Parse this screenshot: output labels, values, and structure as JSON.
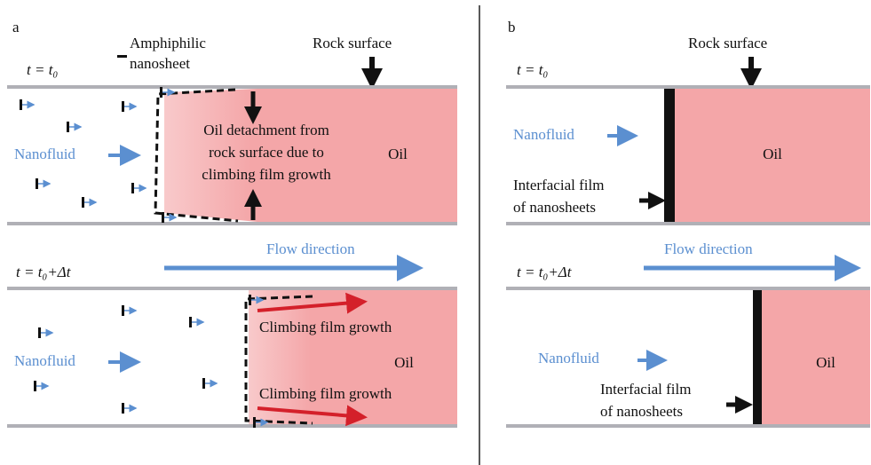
{
  "panel_a": {
    "label": "a",
    "legend_lines": [
      "Amphiphilic",
      "nanosheet"
    ],
    "rock_surface": "Rock surface",
    "top": {
      "time": "t = t₀",
      "nanofluid": "Nanofluid",
      "annotation_lines": [
        "Oil detachment from",
        "rock surface due to",
        "climbing film growth"
      ],
      "oil": "Oil"
    },
    "flow_direction": "Flow direction",
    "bottom": {
      "time": "t = t₀+Δt",
      "nanofluid": "Nanofluid",
      "growth_labels": [
        "Climbing film growth",
        "Climbing film growth"
      ],
      "oil": "Oil"
    }
  },
  "panel_b": {
    "label": "b",
    "rock_surface": "Rock surface",
    "top": {
      "time": "t = t₀",
      "nanofluid": "Nanofluid",
      "film_lines": [
        "Interfacial film",
        "of nanosheets"
      ],
      "oil": "Oil"
    },
    "flow_direction": "Flow direction",
    "bottom": {
      "time": "t = t₀+Δt",
      "nanofluid": "Nanofluid",
      "film_lines": [
        "Interfacial film",
        "of nanosheets"
      ],
      "oil": "Oil"
    }
  }
}
